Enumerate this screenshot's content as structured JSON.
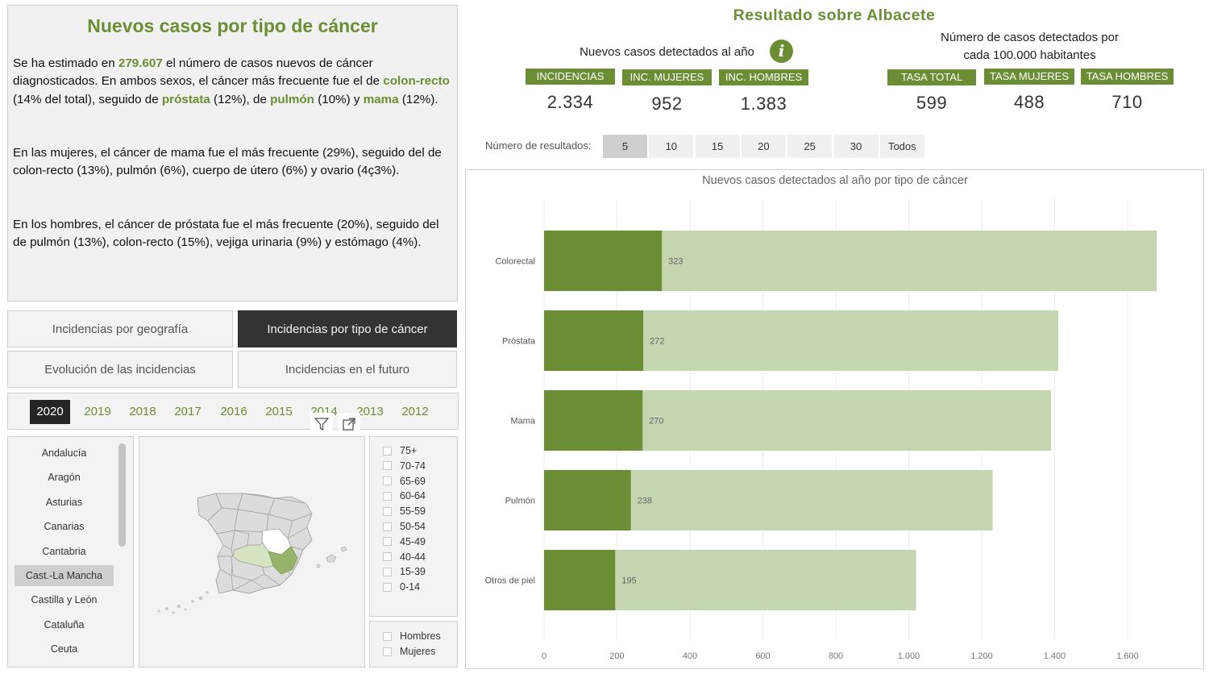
{
  "summary": {
    "title": "Nuevos casos por tipo de cáncer",
    "p1": [
      {
        "t": "Se ha estimado en ",
        "hl": false
      },
      {
        "t": "279.607",
        "hl": true
      },
      {
        "t": " el número de casos nuevos de cáncer diagnosticados.  En ambos sexos, el cáncer más frecuente fue el de ",
        "hl": false
      },
      {
        "t": "colon-recto",
        "hl": true
      },
      {
        "t": " (14% del total), seguido de ",
        "hl": false
      },
      {
        "t": "próstata",
        "hl": true
      },
      {
        "t": " (12%), de ",
        "hl": false
      },
      {
        "t": "pulmón",
        "hl": true
      },
      {
        "t": " (10%) y ",
        "hl": false
      },
      {
        "t": "mama",
        "hl": true
      },
      {
        "t": " (12%).",
        "hl": false
      }
    ],
    "p2": "En las mujeres, el cáncer de mama fue el más frecuente (29%), seguido del de colon-recto (13%), pulmón (6%), cuerpo de útero (6%) y ovario (4ç3%).",
    "p3": "En los hombres, el cáncer de próstata fue el más frecuente (20%), seguido del de pulmón (13%), colon-recto (15%), vejiga urinaria (9%) y estómago (4%)."
  },
  "nav": {
    "geografia": "Incidencias por geografía",
    "tipo": "Incidencias por tipo de cáncer",
    "evolucion": "Evolución de las incidencias",
    "futuro": "Incidencias en el futuro"
  },
  "years": [
    "2020",
    "2019",
    "2018",
    "2017",
    "2016",
    "2015",
    "2014",
    "2013",
    "2012"
  ],
  "selected_year": "2020",
  "regions": [
    "Andalucía",
    "Aragón",
    "Asturias",
    "Canarias",
    "Cantabria",
    "Cast.-La Mancha",
    "Castilla y León",
    "Cataluña",
    "Ceuta"
  ],
  "selected_region": "Cast.-La Mancha",
  "age_groups": [
    "75+",
    "70-74",
    "65-69",
    "60-64",
    "55-59",
    "50-54",
    "45-49",
    "40-44",
    "15-39",
    "0-14"
  ],
  "sexes": [
    "Hombres",
    "Mujeres"
  ],
  "header": {
    "title": "Resultado sobre  Albacete",
    "new_cases_label": "Nuevos casos detectados al año",
    "rate_label_1": "Número de casos detectados por",
    "rate_label_2": "cada 100.000 habitantes",
    "info_icon": "i"
  },
  "kpis": [
    {
      "label": "INCIDENCIAS",
      "value": "2.334"
    },
    {
      "label": "INC. MUJERES",
      "value": "952"
    },
    {
      "label": "INC. HOMBRES",
      "value": "1.383"
    },
    {
      "label": "TASA TOTAL",
      "value": "599"
    },
    {
      "label": "TASA MUJERES",
      "value": "488"
    },
    {
      "label": "TASA HOMBRES",
      "value": "710"
    }
  ],
  "results_selector": {
    "label": "Número de resultados:",
    "options": [
      "5",
      "10",
      "15",
      "20",
      "25",
      "30",
      "Todos"
    ],
    "selected": "5"
  },
  "colors": {
    "accent": "#6b8e34",
    "bar_light": "#c5d5b0",
    "bar_dark": "#6b8e34",
    "active_nav": "#333333"
  },
  "chart_data": {
    "type": "bar",
    "orientation": "horizontal",
    "title": "Nuevos casos detectados al año por tipo de cáncer",
    "categories": [
      "Colorectal",
      "Próstata",
      "Mama",
      "Pulmón",
      "Otros de piel"
    ],
    "series": [
      {
        "values": [
          323,
          272,
          270,
          238,
          195
        ]
      },
      {
        "values": [
          1680,
          1410,
          1390,
          1230,
          1020
        ]
      }
    ],
    "data_labels": [
      "323",
      "272",
      "270",
      "238",
      "195"
    ],
    "xlim": [
      0,
      1700
    ],
    "xticks": [
      0,
      200,
      400,
      600,
      800,
      1000,
      1200,
      1400,
      1600
    ],
    "xtick_labels": [
      "0",
      "200",
      "400",
      "600",
      "800",
      "1.000",
      "1.200",
      "1.400",
      "1.600"
    ],
    "grid": true
  }
}
